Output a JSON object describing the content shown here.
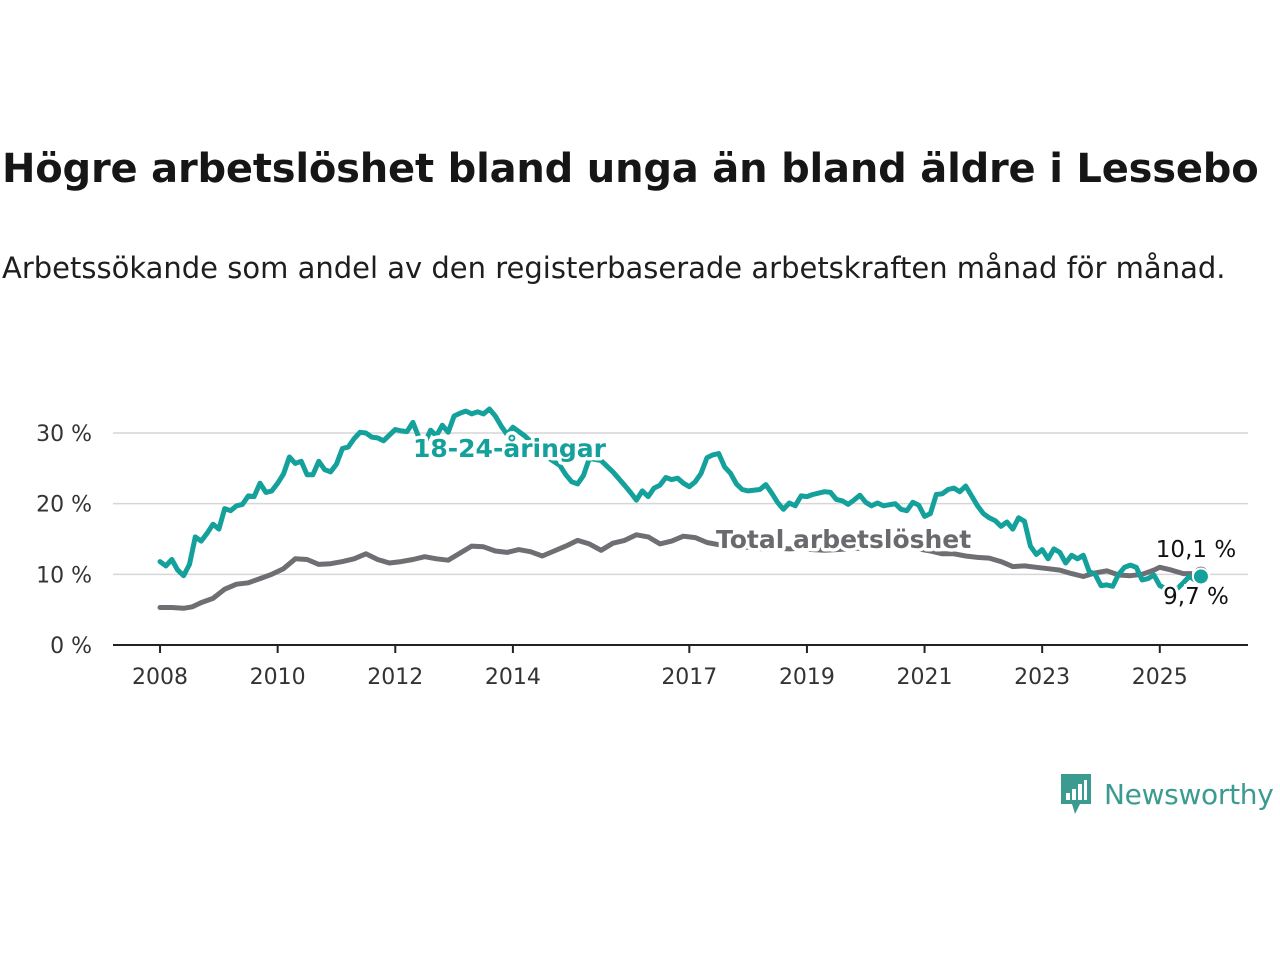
{
  "header": {
    "title": "Högre arbetslöshet bland unga än bland äldre i Lessebo",
    "subtitle": "Arbetssökande som andel av den registerbaserade arbetskraften månad för månad."
  },
  "brand": {
    "name": "Newsworthy",
    "icon": "newsworthy-logo-icon",
    "color": "#3b9b90"
  },
  "chart_data": {
    "type": "line",
    "x_unit": "year (decimal)",
    "y_unit": "percent",
    "xlim": [
      2007.2,
      2026.5
    ],
    "ylim": [
      0,
      30
    ],
    "y_ticks": [
      0,
      10,
      20,
      30
    ],
    "y_tick_labels": [
      "0 %",
      "10 %",
      "20 %",
      "30 %"
    ],
    "x_ticks": [
      2008,
      2010,
      2012,
      2014,
      2017,
      2019,
      2021,
      2023,
      2025
    ],
    "x_tick_labels": [
      "2008",
      "2010",
      "2012",
      "2014",
      "2017",
      "2019",
      "2021",
      "2023",
      "2025"
    ],
    "grid": "horizontal",
    "series": [
      {
        "name": "Total arbetslöshet",
        "color": "#6e6e73",
        "end_label": "10,1 %",
        "points": [
          [
            2008.0,
            5.3
          ],
          [
            2008.2,
            5.3
          ],
          [
            2008.4,
            5.2
          ],
          [
            2008.55,
            5.4
          ],
          [
            2008.7,
            6.0
          ],
          [
            2008.9,
            6.6
          ],
          [
            2009.1,
            7.9
          ],
          [
            2009.3,
            8.6
          ],
          [
            2009.5,
            8.8
          ],
          [
            2009.7,
            9.4
          ],
          [
            2009.9,
            10.0
          ],
          [
            2010.1,
            10.8
          ],
          [
            2010.3,
            12.2
          ],
          [
            2010.5,
            12.1
          ],
          [
            2010.7,
            11.4
          ],
          [
            2010.9,
            11.5
          ],
          [
            2011.1,
            11.8
          ],
          [
            2011.3,
            12.2
          ],
          [
            2011.5,
            12.9
          ],
          [
            2011.7,
            12.1
          ],
          [
            2011.9,
            11.6
          ],
          [
            2012.1,
            11.8
          ],
          [
            2012.3,
            12.1
          ],
          [
            2012.5,
            12.5
          ],
          [
            2012.7,
            12.2
          ],
          [
            2012.9,
            12.0
          ],
          [
            2013.1,
            13.0
          ],
          [
            2013.3,
            14.0
          ],
          [
            2013.5,
            13.9
          ],
          [
            2013.7,
            13.3
          ],
          [
            2013.9,
            13.1
          ],
          [
            2014.1,
            13.5
          ],
          [
            2014.3,
            13.2
          ],
          [
            2014.5,
            12.6
          ],
          [
            2014.7,
            13.3
          ],
          [
            2014.9,
            14.0
          ],
          [
            2015.1,
            14.8
          ],
          [
            2015.3,
            14.3
          ],
          [
            2015.5,
            13.4
          ],
          [
            2015.7,
            14.4
          ],
          [
            2015.9,
            14.8
          ],
          [
            2016.1,
            15.6
          ],
          [
            2016.3,
            15.3
          ],
          [
            2016.5,
            14.3
          ],
          [
            2016.7,
            14.7
          ],
          [
            2016.9,
            15.4
          ],
          [
            2017.1,
            15.2
          ],
          [
            2017.3,
            14.5
          ],
          [
            2017.5,
            14.2
          ],
          [
            2017.7,
            14.0
          ],
          [
            2017.9,
            13.9
          ],
          [
            2018.1,
            13.7
          ],
          [
            2018.3,
            13.6
          ],
          [
            2018.5,
            13.7
          ],
          [
            2018.7,
            13.6
          ],
          [
            2018.9,
            13.7
          ],
          [
            2019.1,
            13.5
          ],
          [
            2019.3,
            13.4
          ],
          [
            2019.5,
            13.5
          ],
          [
            2019.7,
            13.6
          ],
          [
            2019.9,
            13.7
          ],
          [
            2020.1,
            13.9
          ],
          [
            2020.3,
            14.2
          ],
          [
            2020.5,
            14.1
          ],
          [
            2020.7,
            13.9
          ],
          [
            2020.9,
            13.6
          ],
          [
            2021.1,
            13.3
          ],
          [
            2021.3,
            12.9
          ],
          [
            2021.5,
            12.9
          ],
          [
            2021.7,
            12.6
          ],
          [
            2021.9,
            12.4
          ],
          [
            2022.1,
            12.3
          ],
          [
            2022.3,
            11.8
          ],
          [
            2022.5,
            11.1
          ],
          [
            2022.7,
            11.2
          ],
          [
            2022.9,
            11.0
          ],
          [
            2023.1,
            10.8
          ],
          [
            2023.3,
            10.6
          ],
          [
            2023.5,
            10.1
          ],
          [
            2023.7,
            9.7
          ],
          [
            2023.9,
            10.2
          ],
          [
            2024.1,
            10.5
          ],
          [
            2024.3,
            9.9
          ],
          [
            2024.5,
            9.8
          ],
          [
            2024.7,
            10.0
          ],
          [
            2024.9,
            10.6
          ],
          [
            2025.0,
            11.0
          ],
          [
            2025.2,
            10.6
          ],
          [
            2025.4,
            10.1
          ],
          [
            2025.55,
            10.1
          ],
          [
            2025.7,
            10.1
          ]
        ]
      },
      {
        "name": "18-24-åringar",
        "color": "#14a09b",
        "end_label": "9,7 %",
        "points": [
          [
            2008.0,
            11.8
          ],
          [
            2008.1,
            11.2
          ],
          [
            2008.2,
            12.1
          ],
          [
            2008.3,
            10.6
          ],
          [
            2008.4,
            9.8
          ],
          [
            2008.5,
            11.4
          ],
          [
            2008.6,
            15.3
          ],
          [
            2008.7,
            14.7
          ],
          [
            2008.8,
            15.8
          ],
          [
            2008.9,
            17.1
          ],
          [
            2009.0,
            16.4
          ],
          [
            2009.1,
            19.3
          ],
          [
            2009.2,
            19.0
          ],
          [
            2009.3,
            19.7
          ],
          [
            2009.4,
            19.9
          ],
          [
            2009.5,
            21.1
          ],
          [
            2009.6,
            21.0
          ],
          [
            2009.7,
            22.9
          ],
          [
            2009.8,
            21.6
          ],
          [
            2009.9,
            21.8
          ],
          [
            2010.0,
            22.9
          ],
          [
            2010.1,
            24.2
          ],
          [
            2010.2,
            26.6
          ],
          [
            2010.3,
            25.7
          ],
          [
            2010.4,
            26.0
          ],
          [
            2010.5,
            24.1
          ],
          [
            2010.6,
            24.1
          ],
          [
            2010.7,
            26.0
          ],
          [
            2010.8,
            24.8
          ],
          [
            2010.9,
            24.5
          ],
          [
            2011.0,
            25.6
          ],
          [
            2011.1,
            27.8
          ],
          [
            2011.2,
            28.0
          ],
          [
            2011.3,
            29.2
          ],
          [
            2011.4,
            30.1
          ],
          [
            2011.5,
            30.0
          ],
          [
            2011.6,
            29.4
          ],
          [
            2011.7,
            29.3
          ],
          [
            2011.8,
            28.9
          ],
          [
            2011.9,
            29.7
          ],
          [
            2012.0,
            30.5
          ],
          [
            2012.1,
            30.3
          ],
          [
            2012.2,
            30.2
          ],
          [
            2012.3,
            31.5
          ],
          [
            2012.4,
            29.4
          ],
          [
            2012.5,
            28.6
          ],
          [
            2012.6,
            30.4
          ],
          [
            2012.7,
            29.6
          ],
          [
            2012.8,
            31.1
          ],
          [
            2012.9,
            30.1
          ],
          [
            2013.0,
            32.4
          ],
          [
            2013.1,
            32.8
          ],
          [
            2013.2,
            33.1
          ],
          [
            2013.3,
            32.7
          ],
          [
            2013.4,
            33.0
          ],
          [
            2013.5,
            32.7
          ],
          [
            2013.6,
            33.4
          ],
          [
            2013.7,
            32.4
          ],
          [
            2013.8,
            31.0
          ],
          [
            2013.9,
            29.8
          ],
          [
            2014.0,
            30.8
          ],
          [
            2014.2,
            29.6
          ],
          [
            2014.4,
            28.0
          ],
          [
            2014.6,
            26.5
          ],
          [
            2014.8,
            25.4
          ],
          [
            2014.9,
            24.1
          ],
          [
            2015.0,
            23.1
          ],
          [
            2015.1,
            22.8
          ],
          [
            2015.2,
            24.0
          ],
          [
            2015.3,
            26.4
          ],
          [
            2015.5,
            26.1
          ],
          [
            2015.7,
            24.5
          ],
          [
            2015.9,
            22.6
          ],
          [
            2016.0,
            21.6
          ],
          [
            2016.1,
            20.5
          ],
          [
            2016.2,
            21.8
          ],
          [
            2016.3,
            21.0
          ],
          [
            2016.4,
            22.2
          ],
          [
            2016.5,
            22.6
          ],
          [
            2016.6,
            23.7
          ],
          [
            2016.7,
            23.4
          ],
          [
            2016.8,
            23.6
          ],
          [
            2016.9,
            22.9
          ],
          [
            2017.0,
            22.4
          ],
          [
            2017.1,
            23.1
          ],
          [
            2017.2,
            24.3
          ],
          [
            2017.3,
            26.5
          ],
          [
            2017.4,
            26.9
          ],
          [
            2017.5,
            27.1
          ],
          [
            2017.6,
            25.2
          ],
          [
            2017.7,
            24.3
          ],
          [
            2017.8,
            22.8
          ],
          [
            2017.9,
            22.0
          ],
          [
            2018.0,
            21.8
          ],
          [
            2018.2,
            22.0
          ],
          [
            2018.3,
            22.7
          ],
          [
            2018.4,
            21.5
          ],
          [
            2018.5,
            20.2
          ],
          [
            2018.6,
            19.2
          ],
          [
            2018.7,
            20.1
          ],
          [
            2018.8,
            19.7
          ],
          [
            2018.9,
            21.1
          ],
          [
            2019.0,
            21.0
          ],
          [
            2019.1,
            21.3
          ],
          [
            2019.3,
            21.7
          ],
          [
            2019.4,
            21.6
          ],
          [
            2019.5,
            20.6
          ],
          [
            2019.6,
            20.4
          ],
          [
            2019.7,
            19.9
          ],
          [
            2019.8,
            20.5
          ],
          [
            2019.9,
            21.2
          ],
          [
            2020.0,
            20.2
          ],
          [
            2020.1,
            19.7
          ],
          [
            2020.2,
            20.1
          ],
          [
            2020.3,
            19.7
          ],
          [
            2020.5,
            20.0
          ],
          [
            2020.6,
            19.2
          ],
          [
            2020.7,
            19.0
          ],
          [
            2020.8,
            20.2
          ],
          [
            2020.9,
            19.8
          ],
          [
            2021.0,
            18.2
          ],
          [
            2021.1,
            18.6
          ],
          [
            2021.2,
            21.3
          ],
          [
            2021.3,
            21.4
          ],
          [
            2021.4,
            22.0
          ],
          [
            2021.5,
            22.2
          ],
          [
            2021.6,
            21.7
          ],
          [
            2021.7,
            22.5
          ],
          [
            2021.8,
            21.1
          ],
          [
            2021.9,
            19.7
          ],
          [
            2022.0,
            18.6
          ],
          [
            2022.1,
            18.0
          ],
          [
            2022.2,
            17.6
          ],
          [
            2022.3,
            16.8
          ],
          [
            2022.4,
            17.4
          ],
          [
            2022.5,
            16.4
          ],
          [
            2022.6,
            18.0
          ],
          [
            2022.7,
            17.5
          ],
          [
            2022.8,
            14.0
          ],
          [
            2022.9,
            12.8
          ],
          [
            2023.0,
            13.5
          ],
          [
            2023.1,
            12.2
          ],
          [
            2023.2,
            13.6
          ],
          [
            2023.3,
            13.1
          ],
          [
            2023.4,
            11.6
          ],
          [
            2023.5,
            12.7
          ],
          [
            2023.6,
            12.2
          ],
          [
            2023.7,
            12.7
          ],
          [
            2023.8,
            10.4
          ],
          [
            2023.9,
            10.0
          ],
          [
            2024.0,
            8.4
          ],
          [
            2024.1,
            8.5
          ],
          [
            2024.2,
            8.3
          ],
          [
            2024.3,
            10.0
          ],
          [
            2024.4,
            11.0
          ],
          [
            2024.5,
            11.3
          ],
          [
            2024.6,
            11.0
          ],
          [
            2024.7,
            9.2
          ],
          [
            2024.8,
            9.4
          ],
          [
            2024.9,
            9.9
          ],
          [
            2025.0,
            8.4
          ],
          [
            2025.1,
            8.0
          ],
          [
            2025.2,
            7.8
          ],
          [
            2025.3,
            8.0
          ],
          [
            2025.4,
            8.8
          ],
          [
            2025.5,
            9.7
          ],
          [
            2025.6,
            9.2
          ],
          [
            2025.7,
            9.7
          ]
        ]
      }
    ]
  }
}
